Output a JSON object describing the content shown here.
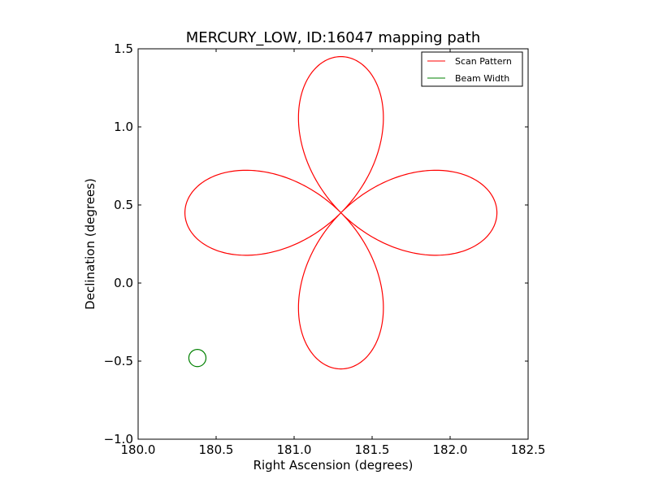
{
  "chart_data": {
    "type": "line",
    "title": "MERCURY_LOW, ID:16047 mapping path",
    "xlabel": "Right Ascension (degrees)",
    "ylabel": "Declination (degrees)",
    "xlim": [
      180.0,
      182.5
    ],
    "ylim": [
      -1.0,
      1.5
    ],
    "xticks": [
      180.0,
      180.5,
      181.0,
      181.5,
      182.0,
      182.5
    ],
    "yticks": [
      -1.0,
      -0.5,
      0.0,
      0.5,
      1.0,
      1.5
    ],
    "xtick_labels": [
      "180.0",
      "180.5",
      "181.0",
      "181.5",
      "182.0",
      "182.5"
    ],
    "ytick_labels": [
      "−1.0",
      "−0.5",
      "0.0",
      "0.5",
      "1.0",
      "1.5"
    ],
    "grid": false,
    "legend_position": "top-right",
    "series": [
      {
        "name": "Scan Pattern",
        "color": "#ff0000",
        "shape": "four-petal rose",
        "center": [
          181.3,
          0.45
        ],
        "radius": 1.0
      },
      {
        "name": "Beam Width",
        "color": "#008000",
        "shape": "circle",
        "center": [
          180.38,
          -0.48
        ],
        "radius": 0.055
      }
    ]
  }
}
